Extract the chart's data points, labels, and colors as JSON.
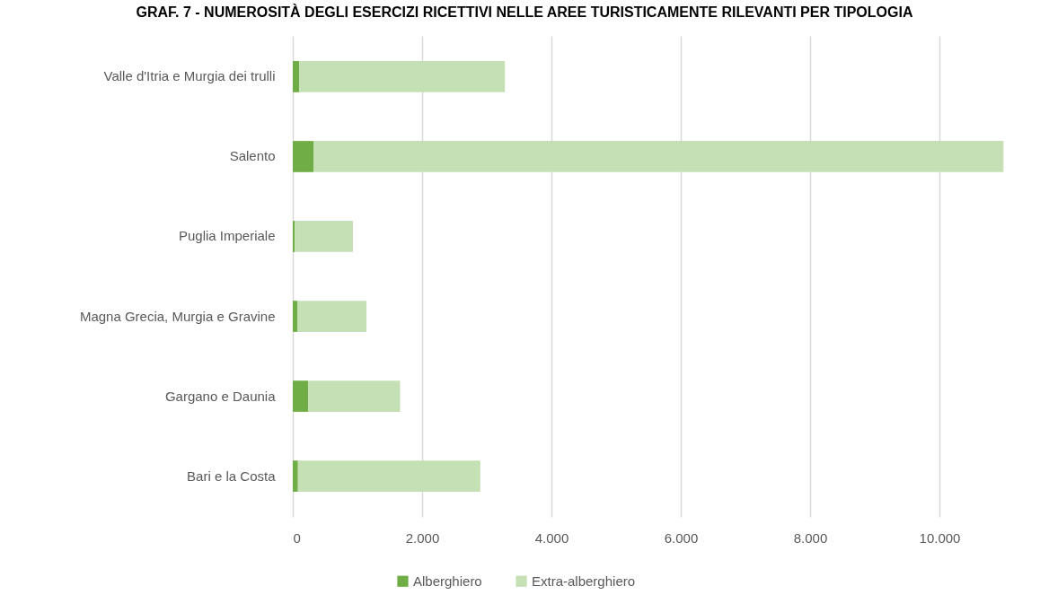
{
  "chart_data": {
    "type": "bar",
    "title": "GRAF. 7 - NUMEROSITÀ DEGLI ESERCIZI RICETTIVI NELLE AREE TURISTICAMENTE RILEVANTI PER TIPOLOGIA",
    "orientation": "horizontal",
    "stacked": true,
    "categories": [
      "Valle d'Itria e Murgia dei trulli",
      "Salento",
      "Puglia Imperiale",
      "Magna Grecia, Murgia e Gravine",
      "Gargano e Daunia",
      "Bari e la Costa"
    ],
    "series": [
      {
        "name": "Alberghiero",
        "color": "#70ad47",
        "values": [
          100,
          320,
          30,
          70,
          240,
          80
        ]
      },
      {
        "name": "Extra-alberghiero",
        "color": "#c5e0b4",
        "values": [
          3180,
          10670,
          900,
          1070,
          1420,
          2820
        ]
      }
    ],
    "xlim": [
      0,
      11000
    ],
    "xticks": [
      0,
      {
        "value": 2000,
        "label": "2.000"
      },
      {
        "value": 4000,
        "label": "4.000"
      },
      {
        "value": 6000,
        "label": "6.000"
      },
      {
        "value": 8000,
        "label": "8.000"
      },
      {
        "value": 10000,
        "label": "10.000"
      }
    ],
    "grid": "x",
    "legend": "bottom"
  }
}
